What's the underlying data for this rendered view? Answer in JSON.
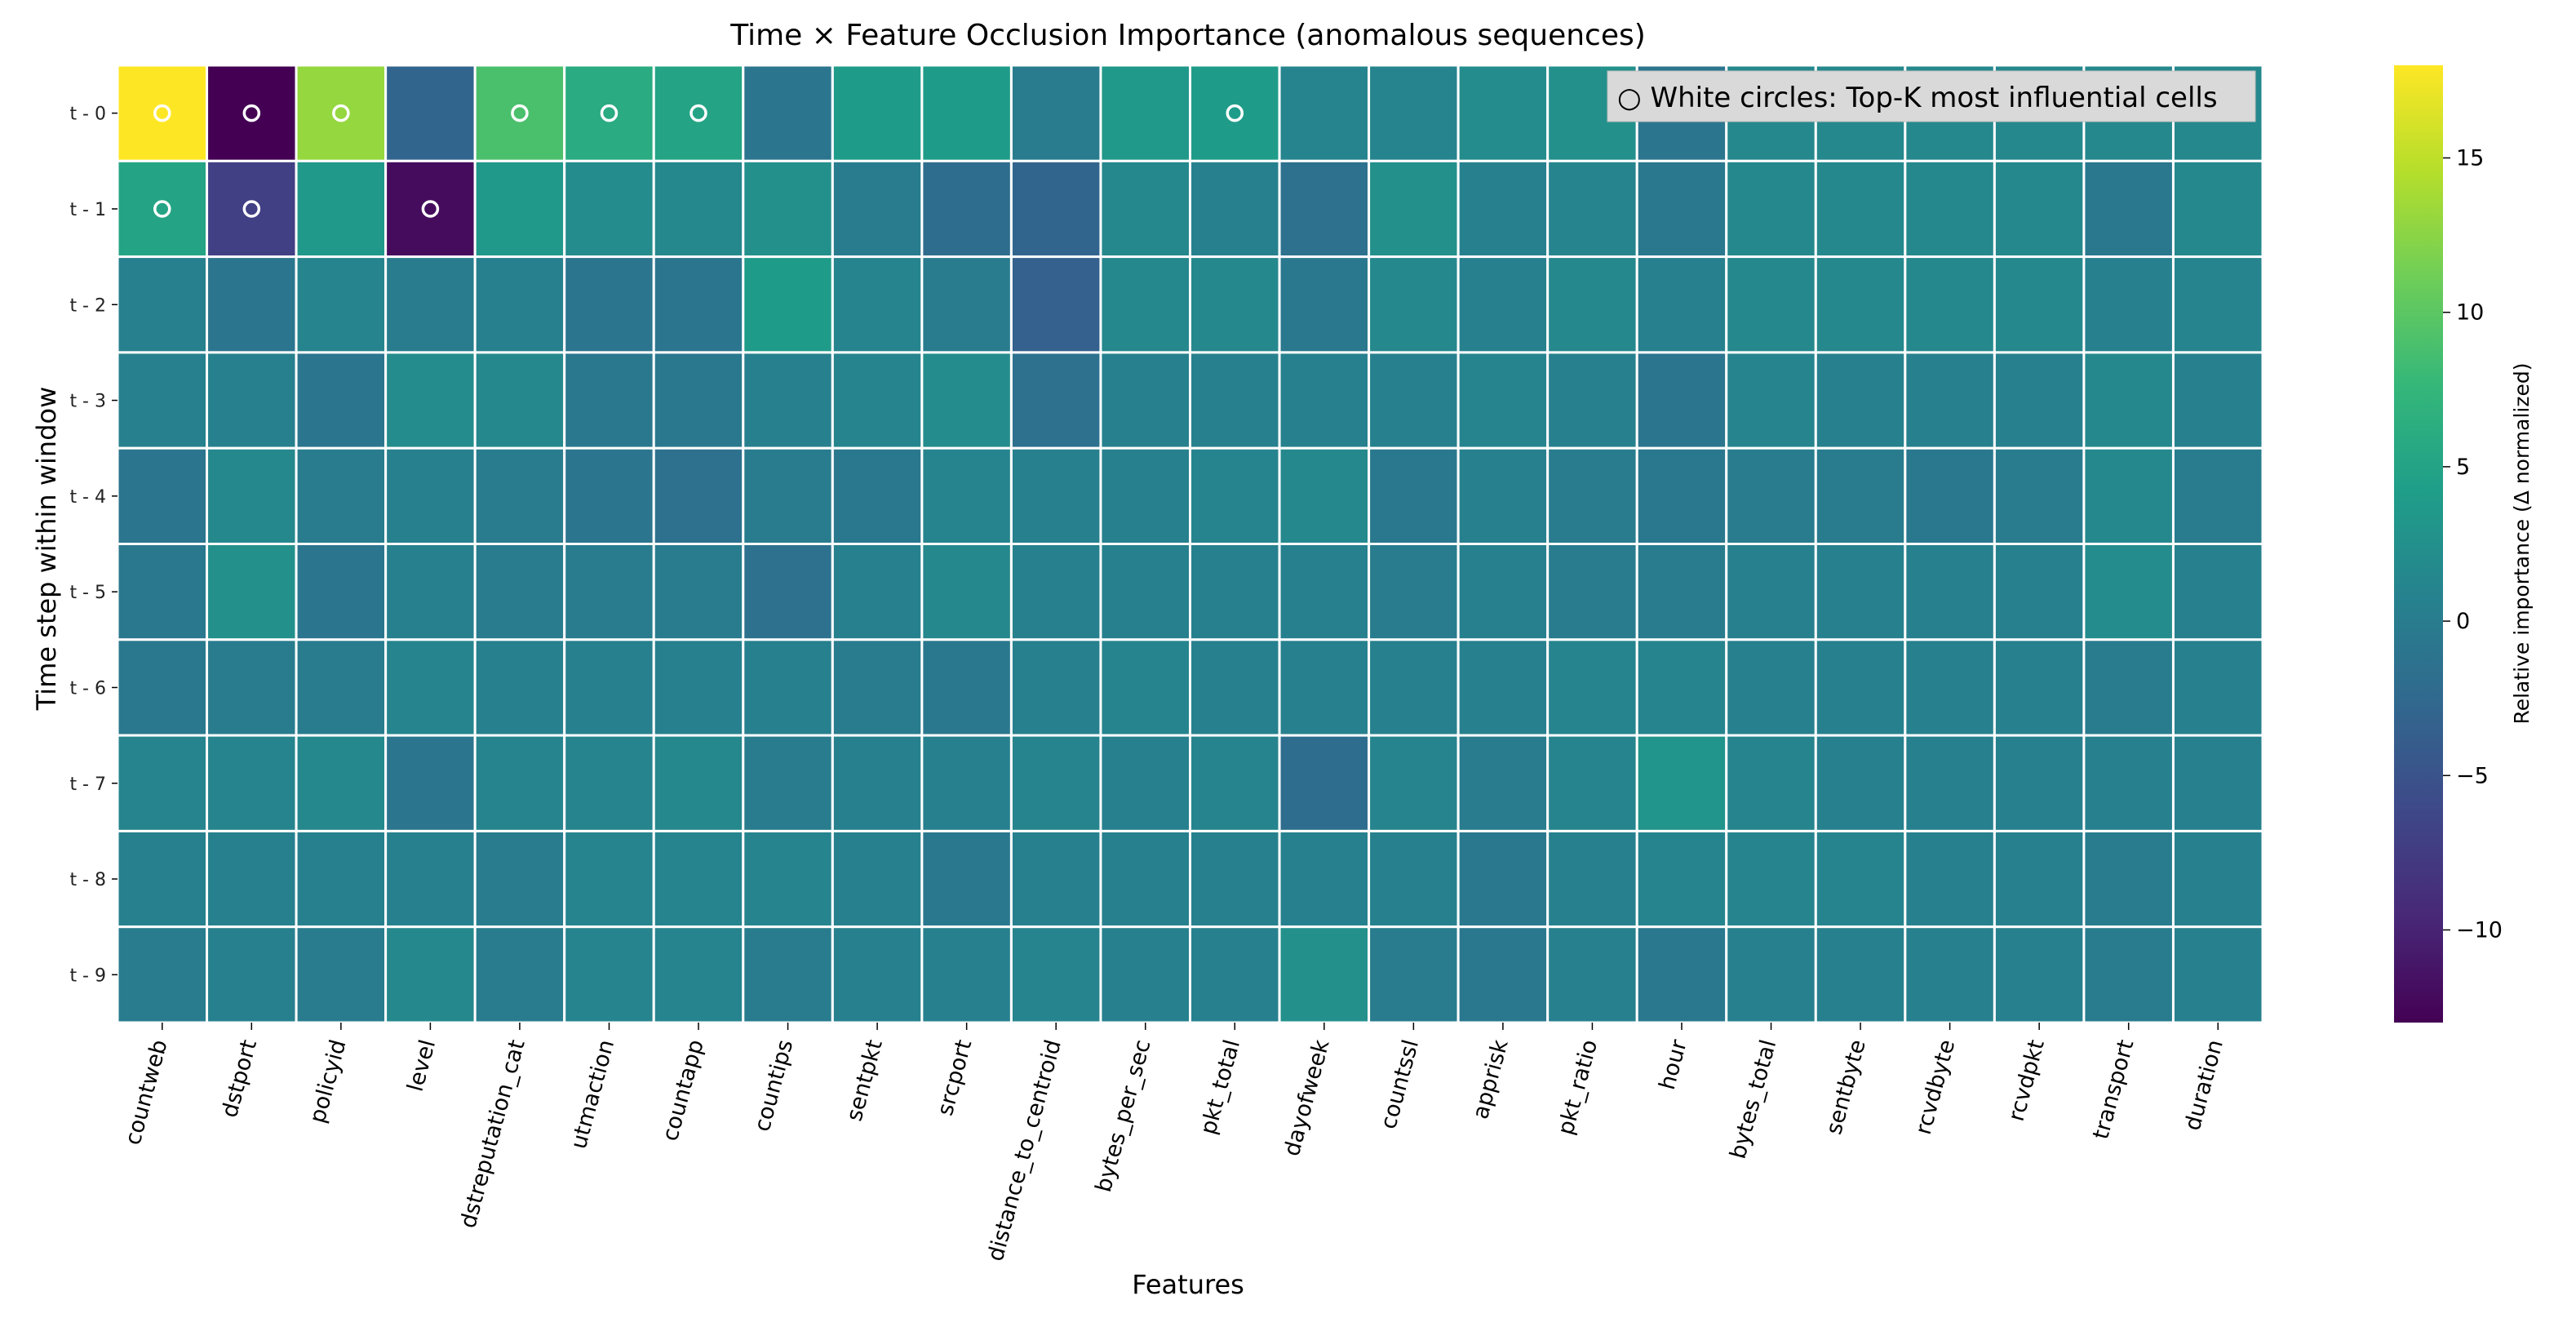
{
  "chart_data": {
    "type": "heatmap",
    "title": "Time × Feature Occlusion Importance (anomalous sequences)",
    "xlabel": "Features",
    "ylabel": "Time step within window",
    "x_categories": [
      "countweb",
      "dstport",
      "policyid",
      "level",
      "dstreputation_cat",
      "utmaction",
      "countapp",
      "countips",
      "sentpkt",
      "srcport",
      "distance_to_centroid",
      "bytes_per_sec",
      "pkt_total",
      "dayofweek",
      "countssl",
      "apprisk",
      "pkt_ratio",
      "hour",
      "bytes_total",
      "sentbyte",
      "rcvdbyte",
      "rcvdpkt",
      "transport",
      "duration"
    ],
    "y_categories": [
      "t - 0",
      "t - 1",
      "t - 2",
      "t - 3",
      "t - 4",
      "t - 5",
      "t - 6",
      "t - 7",
      "t - 8",
      "t - 9"
    ],
    "values": [
      [
        18,
        -13,
        13,
        -3,
        9,
        6,
        5,
        -1,
        4,
        4,
        0,
        3.5,
        4,
        1,
        1,
        2,
        2.5,
        -1,
        1.5,
        1.5,
        1.5,
        1.5,
        1.5,
        1.5
      ],
      [
        5,
        -7,
        3.5,
        -12,
        3.5,
        2,
        1.5,
        2.5,
        0,
        -2,
        -3,
        1.5,
        0.5,
        -1.5,
        2.5,
        0.5,
        1,
        -0.5,
        1.5,
        1.5,
        1.5,
        1.5,
        -0.5,
        1.5
      ],
      [
        0.5,
        -1,
        1,
        0,
        0.5,
        -1,
        -1,
        4,
        1,
        0,
        -3.5,
        1.5,
        1.5,
        -0.5,
        1.5,
        0.5,
        1.5,
        0.5,
        1.5,
        1.5,
        1.5,
        1.5,
        0.5,
        1
      ],
      [
        0.5,
        0.5,
        -1,
        2,
        1.5,
        -0.5,
        -0.5,
        0.5,
        1,
        2,
        -1.5,
        0.5,
        0.5,
        0.5,
        0.5,
        1,
        0.5,
        -1,
        1,
        0.5,
        0.5,
        0.5,
        1.5,
        0.5
      ],
      [
        -1,
        1.5,
        0,
        0.5,
        0,
        -1,
        -1.5,
        0,
        -0.5,
        1,
        0.5,
        0.5,
        1,
        1.5,
        -0.5,
        0.5,
        0,
        -0.5,
        0,
        0,
        -0.5,
        0,
        1.5,
        0
      ],
      [
        -0.5,
        2.5,
        -1,
        0.5,
        0,
        0,
        0,
        -1.5,
        0.5,
        1.5,
        0.5,
        0.5,
        0.5,
        0.5,
        0,
        0.5,
        0,
        0,
        0.5,
        0.5,
        0.5,
        0.5,
        2,
        0.5
      ],
      [
        -0.5,
        0,
        0,
        1,
        0.5,
        0.5,
        0.5,
        0.5,
        0,
        -0.5,
        0.5,
        1,
        0.5,
        0.5,
        0.5,
        0.5,
        1,
        1,
        0.5,
        0.5,
        0.5,
        0.5,
        0,
        0.5
      ],
      [
        1,
        1,
        1.5,
        -1,
        1,
        1,
        1.5,
        0,
        0.5,
        0.5,
        1,
        0.5,
        1,
        -2,
        1,
        0,
        1,
        3,
        1,
        0.5,
        0.5,
        0.5,
        0.5,
        0.5
      ],
      [
        0.5,
        0.5,
        0.5,
        0.5,
        0,
        1,
        1,
        1,
        0.5,
        -0.5,
        0.5,
        0.5,
        0.5,
        0.5,
        0.5,
        -0.5,
        0.5,
        1,
        1,
        1,
        0.5,
        0.5,
        0,
        0.5
      ],
      [
        0,
        0.5,
        0,
        1.5,
        0,
        1,
        1,
        0,
        0.5,
        0.5,
        1,
        0.5,
        0.5,
        2.5,
        0,
        -0.5,
        0.5,
        -0.5,
        0.5,
        0.5,
        0.5,
        0.5,
        0,
        0.5
      ]
    ],
    "highlighted_cells": [
      [
        "t - 0",
        "countweb"
      ],
      [
        "t - 0",
        "dstport"
      ],
      [
        "t - 0",
        "policyid"
      ],
      [
        "t - 0",
        "dstreputation_cat"
      ],
      [
        "t - 0",
        "utmaction"
      ],
      [
        "t - 0",
        "countapp"
      ],
      [
        "t - 0",
        "pkt_total"
      ],
      [
        "t - 1",
        "countweb"
      ],
      [
        "t - 1",
        "dstport"
      ],
      [
        "t - 1",
        "level"
      ]
    ],
    "colormap": "viridis",
    "vmin": -13,
    "vmax": 18,
    "colorbar": {
      "label": "Relative importance (Δ normalized)",
      "ticks": [
        -10,
        -5,
        0,
        5,
        10,
        15
      ],
      "tick_labels": [
        "−10",
        "−5",
        "0",
        "5",
        "10",
        "15"
      ]
    },
    "legend": {
      "text": "○ White circles: Top-K most influential cells",
      "placement": "top-right"
    },
    "grid": false
  }
}
